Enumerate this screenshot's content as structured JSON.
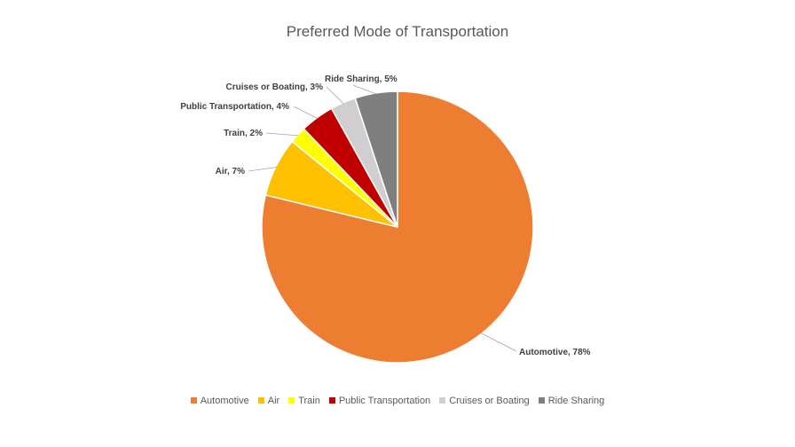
{
  "chart_data": {
    "type": "pie",
    "title": "Preferred Mode of Transportation",
    "categories": [
      "Automotive",
      "Air",
      "Train",
      "Public Transportation",
      "Cruises or Boating",
      "Ride Sharing"
    ],
    "values": [
      78,
      7,
      2,
      4,
      3,
      5
    ],
    "unit": "%",
    "data_labels": [
      "Automotive, 78%",
      "Air, 7%",
      "Train, 2%",
      "Public Transportation, 4%",
      "Cruises or Boating, 3%",
      "Ride Sharing, 5%"
    ],
    "colors": [
      "#ED7D31",
      "#FFC000",
      "#FFFF00",
      "#C00000",
      "#D0CECE",
      "#7F7F7F"
    ],
    "legend_position": "bottom"
  }
}
